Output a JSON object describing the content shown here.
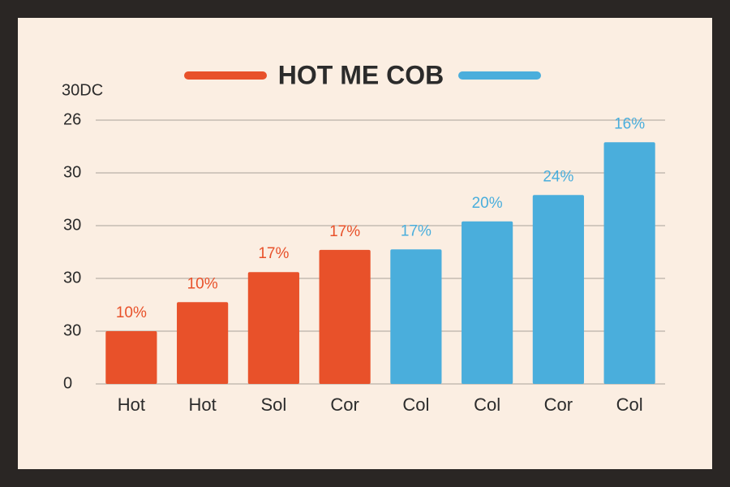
{
  "chart_data": {
    "type": "bar",
    "title": "HOT ME COB",
    "y_label": "30DC",
    "categories": [
      "Hot",
      "Hot",
      "Sol",
      "Cor",
      "Col",
      "Col",
      "Cor",
      "Col"
    ],
    "values": [
      1.0,
      1.55,
      2.12,
      2.54,
      2.55,
      3.08,
      3.58,
      4.58
    ],
    "annotations": [
      "10%",
      "10%",
      "17%",
      "17%",
      "17%",
      "20%",
      "24%",
      "16%"
    ],
    "colors": [
      "#e8512a",
      "#e8512a",
      "#e8512a",
      "#e8512a",
      "#4aaedc",
      "#4aaedc",
      "#4aaedc",
      "#4aaedc"
    ],
    "legend_colors": [
      "#e8512a",
      "#4aaedc"
    ],
    "ylim": [
      0,
      5
    ],
    "yticks": [
      0,
      {
        "value": 1,
        "label": "30"
      },
      {
        "value": 2,
        "label": "30"
      },
      {
        "value": 3,
        "label": "30"
      },
      {
        "value": 4,
        "label": "30"
      },
      {
        "value": 5,
        "label": "26"
      }
    ],
    "grid": true
  }
}
